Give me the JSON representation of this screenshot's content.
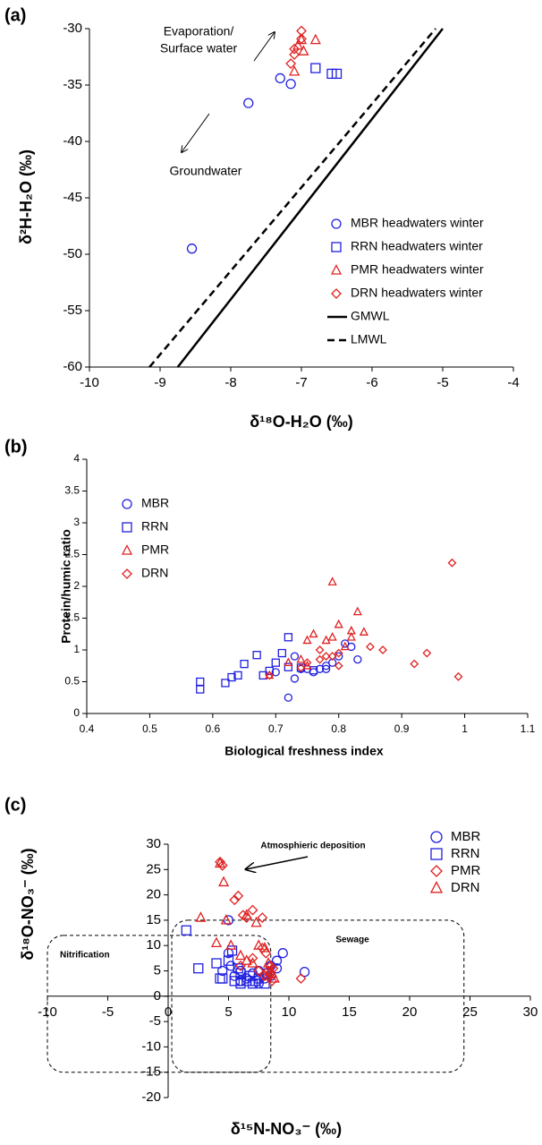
{
  "chart_data": [
    {
      "type": "scatter",
      "panel_label": "(a)",
      "xlabel": "δ¹⁸O-H₂O (‰)",
      "ylabel": "δ²H-H₂O (‰)",
      "xlim": [
        -10,
        -4
      ],
      "xticks": [
        -10,
        -9,
        -8,
        -7,
        -6,
        -5,
        -4
      ],
      "ylim": [
        -60,
        -30
      ],
      "yticks": [
        -30,
        -35,
        -40,
        -45,
        -50,
        -55,
        -60
      ],
      "annotations": [
        {
          "lines": [
            "Evaporation/",
            "Surface water"
          ]
        },
        {
          "lines": [
            "Groundwater"
          ]
        }
      ],
      "series": [
        {
          "name": "MBR headwaters winter",
          "color": "#2020e0",
          "marker": "circle",
          "x": [
            -8.55,
            -7.75,
            -7.3,
            -7.15
          ],
          "values": [
            -49.5,
            -36.6,
            -34.4,
            -34.9
          ]
        },
        {
          "name": "RRN headwaters winter",
          "color": "#2020e0",
          "marker": "square",
          "x": [
            -6.8,
            -6.57,
            -6.5
          ],
          "values": [
            -33.5,
            -34.0,
            -34.0
          ]
        },
        {
          "name": "PMR headwaters winter",
          "color": "#e02020",
          "marker": "triangle",
          "x": [
            -7.1,
            -7.05,
            -7.0,
            -6.97,
            -6.8
          ],
          "values": [
            -33.8,
            -31.5,
            -31.0,
            -32.0,
            -31.0
          ]
        },
        {
          "name": "DRN headwaters winter",
          "color": "#e02020",
          "marker": "diamond",
          "x": [
            -7.15,
            -7.1,
            -7.1,
            -7.0,
            -7.0
          ],
          "values": [
            -33.1,
            -32.3,
            -31.8,
            -30.2,
            -30.9
          ]
        },
        {
          "name": "GMWL",
          "color": "#000000",
          "line": "solid",
          "x": [
            -8.75,
            -5.0
          ],
          "values": [
            -60,
            -30
          ]
        },
        {
          "name": "LMWL",
          "color": "#000000",
          "line": "dashed",
          "x": [
            -9.15,
            -5.1
          ],
          "values": [
            -60,
            -30
          ]
        }
      ]
    },
    {
      "type": "scatter",
      "panel_label": "(b)",
      "xlabel": "Biological freshness index",
      "ylabel": "Protein/humic ratio",
      "xlim": [
        0.4,
        1.1
      ],
      "xticks": [
        0.4,
        0.5,
        0.6,
        0.7,
        0.8,
        0.9,
        1,
        1.1
      ],
      "ylim": [
        0,
        4
      ],
      "yticks": [
        0,
        0.5,
        1,
        1.5,
        2,
        2.5,
        3,
        3.5,
        4
      ],
      "series": [
        {
          "name": "MBR",
          "color": "#2020e0",
          "marker": "circle",
          "x": [
            0.72,
            0.73,
            0.73,
            0.74,
            0.75,
            0.76,
            0.77,
            0.78,
            0.78,
            0.79,
            0.8,
            0.81,
            0.82,
            0.83,
            0.7
          ],
          "values": [
            0.25,
            0.55,
            0.9,
            0.7,
            0.7,
            0.65,
            0.7,
            0.75,
            0.7,
            0.8,
            0.9,
            1.1,
            1.05,
            0.85,
            0.65
          ]
        },
        {
          "name": "RRN",
          "color": "#2020e0",
          "marker": "square",
          "x": [
            0.58,
            0.58,
            0.62,
            0.63,
            0.64,
            0.65,
            0.67,
            0.68,
            0.69,
            0.7,
            0.71,
            0.72,
            0.74,
            0.76,
            0.72
          ],
          "values": [
            0.38,
            0.5,
            0.48,
            0.57,
            0.6,
            0.78,
            0.92,
            0.6,
            0.67,
            0.8,
            0.95,
            1.2,
            0.72,
            0.68,
            0.73
          ]
        },
        {
          "name": "PMR",
          "color": "#e02020",
          "marker": "triangle",
          "x": [
            0.69,
            0.72,
            0.74,
            0.75,
            0.76,
            0.78,
            0.79,
            0.79,
            0.8,
            0.81,
            0.82,
            0.82,
            0.83,
            0.84,
            0.75
          ],
          "values": [
            0.6,
            0.8,
            0.85,
            1.15,
            1.25,
            1.15,
            2.07,
            1.2,
            1.4,
            1.05,
            1.3,
            1.2,
            1.6,
            1.28,
            0.75
          ]
        },
        {
          "name": "DRN",
          "color": "#e02020",
          "marker": "diamond",
          "x": [
            0.69,
            0.74,
            0.75,
            0.77,
            0.78,
            0.79,
            0.8,
            0.85,
            0.87,
            0.92,
            0.94,
            0.98,
            0.99,
            0.77,
            0.8
          ],
          "values": [
            0.6,
            0.72,
            0.8,
            0.85,
            0.9,
            0.9,
            0.95,
            1.05,
            1.0,
            0.78,
            0.95,
            2.37,
            0.58,
            1.0,
            0.75
          ]
        }
      ]
    },
    {
      "type": "scatter",
      "panel_label": "(c)",
      "xlabel": "δ¹⁵N-NO₃⁻ (‰)",
      "ylabel": "δ¹⁸O-NO₃⁻ (‰)",
      "axis_position": "zero",
      "xlim": [
        -10,
        30
      ],
      "xticks": [
        -10,
        -5,
        0,
        5,
        10,
        15,
        20,
        25,
        30
      ],
      "ylim": [
        -20,
        30
      ],
      "yticks": [
        -20,
        -15,
        -10,
        -5,
        0,
        5,
        10,
        15,
        20,
        25,
        30
      ],
      "annotations": [
        {
          "lines": [
            "Atmosphieric deposition"
          ]
        }
      ],
      "regions": [
        {
          "label": "Nitrification",
          "x": [
            -10,
            8.5
          ],
          "y": [
            -15,
            12
          ]
        },
        {
          "label": "Sewage",
          "x": [
            0.3,
            24.5
          ],
          "y": [
            -15,
            15
          ]
        }
      ],
      "series": [
        {
          "name": "MBR",
          "color": "#2020e0",
          "marker": "circle",
          "x": [
            5,
            5,
            5.2,
            5.5,
            6,
            6.5,
            7,
            7.5,
            8,
            8.5,
            9,
            9.5,
            11.3,
            9,
            6,
            7.5,
            8.5,
            4.5
          ],
          "values": [
            15,
            8.5,
            6,
            4,
            3,
            3.5,
            4.5,
            5,
            3.5,
            4,
            7,
            8.5,
            4.8,
            5.5,
            5,
            2.5,
            6,
            5
          ]
        },
        {
          "name": "RRN",
          "color": "#2020e0",
          "marker": "square",
          "x": [
            1.5,
            2.5,
            4,
            4.3,
            4.5,
            5,
            5.3,
            5.5,
            6,
            6,
            6.5,
            7,
            7.5,
            8,
            6.8,
            5.8,
            7.2,
            8.2
          ],
          "values": [
            13,
            5.5,
            6.5,
            3.5,
            3.5,
            7,
            9,
            3,
            2.5,
            4.5,
            3,
            2.5,
            3.5,
            2.5,
            4,
            5.5,
            3,
            4.5
          ]
        },
        {
          "name": "PMR",
          "color": "#e02020",
          "marker": "diamond",
          "x": [
            4.3,
            4.5,
            5.5,
            5.8,
            6.2,
            7,
            6.5,
            7.8,
            8.1,
            8.5,
            8.3,
            8,
            8.6,
            11,
            7,
            7.5,
            8.4,
            8.7,
            7.8,
            6
          ],
          "values": [
            26.5,
            25.8,
            19,
            19.8,
            16,
            17,
            15.5,
            15.5,
            8.5,
            6,
            5,
            4,
            3,
            3.5,
            7.5,
            5,
            4.5,
            5.5,
            9.5,
            6
          ]
        },
        {
          "name": "DRN",
          "color": "#e02020",
          "marker": "triangle",
          "x": [
            4.3,
            4.6,
            2.7,
            4.8,
            6.5,
            7.3,
            4,
            5.2,
            7.5,
            8,
            8.3,
            8.5,
            8.2,
            8.8,
            6.5,
            7,
            6,
            8.6
          ],
          "values": [
            26.2,
            22.5,
            15.5,
            15,
            16,
            14.5,
            10.5,
            10,
            10,
            9.5,
            6.5,
            5,
            4,
            3.5,
            7,
            6.5,
            8,
            4.5
          ]
        }
      ]
    }
  ]
}
